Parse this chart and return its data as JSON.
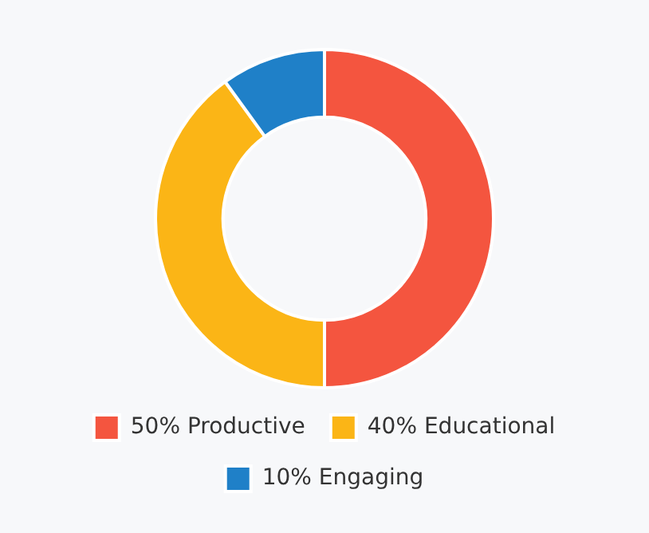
{
  "chart_data": {
    "type": "donut",
    "categories": [
      "50% Productive",
      "40% Educational",
      "10% Engaging"
    ],
    "values": [
      50,
      40,
      10
    ],
    "colors": [
      "#f4553f",
      "#fbb516",
      "#1f80c8"
    ],
    "legend": "bottom"
  }
}
